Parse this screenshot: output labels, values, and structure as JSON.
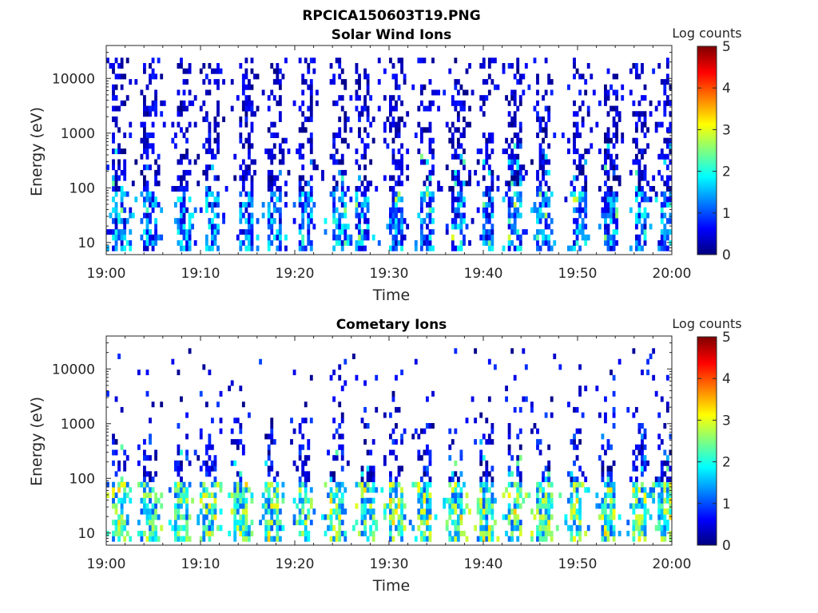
{
  "figure_title": "RPCICA150603T19.PNG",
  "colors": {
    "background": "#ffffff",
    "axis": "#262626",
    "colormap": "jet",
    "colormap_stops": [
      "#00007f",
      "#0000ff",
      "#007fff",
      "#00ffff",
      "#7fff7f",
      "#ffff00",
      "#ff7f00",
      "#ff0000",
      "#7f0000"
    ]
  },
  "chart_data": [
    {
      "type": "heatmap",
      "title": "Solar Wind Ions",
      "xlabel": "Time",
      "ylabel": "Energy (eV)",
      "yscale": "log",
      "ylim": [
        6,
        40000
      ],
      "xlim": [
        "19:00",
        "20:00"
      ],
      "x_tick_labels": [
        "19:00",
        "19:10",
        "19:20",
        "19:30",
        "19:40",
        "19:50",
        "20:00"
      ],
      "y_tick_labels": [
        "10",
        "100",
        "1000",
        "10000"
      ],
      "y_tick_values": [
        10,
        100,
        1000,
        10000
      ],
      "colorbar": {
        "label": "Log counts",
        "range": [
          0,
          5
        ],
        "tick_labels": [
          "0",
          "1",
          "2",
          "3",
          "4",
          "5"
        ]
      },
      "grid": false,
      "sweep_period_minutes": 3,
      "burst_times_minutes": [
        1.3,
        4.8,
        8.3,
        11.3,
        14.8,
        17.8,
        21.2,
        24.9,
        27.2,
        30.8,
        34.0,
        37.4,
        40.5,
        43.4,
        46.3,
        50.2,
        53.5,
        56.7,
        59.5
      ],
      "energy_bins": [
        7,
        8.8,
        11,
        14,
        17.5,
        22,
        28,
        35,
        44,
        55,
        69,
        86,
        108,
        135,
        170,
        212,
        266,
        333,
        417,
        522,
        654,
        819,
        1025,
        1284,
        1608,
        2014,
        2522,
        3158,
        3955,
        4953,
        6203,
        7768,
        9728,
        12183,
        15257,
        19107,
        23928
      ],
      "peak_log_counts": 3.0,
      "typical_log_counts_low_energy": [
        0.3,
        2.0
      ],
      "typical_log_counts_high_energy": [
        0,
        0.8
      ],
      "max_energy_seen_eV": 22000
    },
    {
      "type": "heatmap",
      "title": "Cometary Ions",
      "xlabel": "Time",
      "ylabel": "Energy (eV)",
      "yscale": "log",
      "ylim": [
        6,
        40000
      ],
      "xlim": [
        "19:00",
        "20:00"
      ],
      "x_tick_labels": [
        "19:00",
        "19:10",
        "19:20",
        "19:30",
        "19:40",
        "19:50",
        "20:00"
      ],
      "y_tick_labels": [
        "10",
        "100",
        "1000",
        "10000"
      ],
      "y_tick_values": [
        10,
        100,
        1000,
        10000
      ],
      "colorbar": {
        "label": "Log counts",
        "range": [
          0,
          5
        ],
        "tick_labels": [
          "0",
          "1",
          "2",
          "3",
          "4",
          "5"
        ]
      },
      "grid": false,
      "sweep_period_minutes": 3,
      "burst_times_minutes": [
        1.3,
        4.6,
        7.8,
        11.0,
        14.3,
        17.5,
        21.0,
        24.5,
        27.6,
        30.6,
        33.8,
        37.0,
        40.3,
        43.4,
        46.2,
        49.8,
        53.2,
        56.6,
        59.3
      ],
      "energy_bins": [
        7,
        8.8,
        11,
        14,
        17.5,
        22,
        28,
        35,
        44,
        55,
        69,
        86,
        108,
        135,
        170,
        212,
        266,
        333,
        417,
        522,
        654,
        819,
        1025,
        1284,
        1608,
        2014,
        2522,
        3158,
        3955,
        4953,
        6203,
        7768,
        9728,
        12183,
        15257,
        19107,
        23928
      ],
      "peak_log_counts": 3.4,
      "typical_log_counts_low_energy": [
        1.0,
        3.0
      ],
      "typical_log_counts_high_energy": [
        0,
        1.0
      ],
      "max_energy_seen_eV": 21000
    }
  ]
}
